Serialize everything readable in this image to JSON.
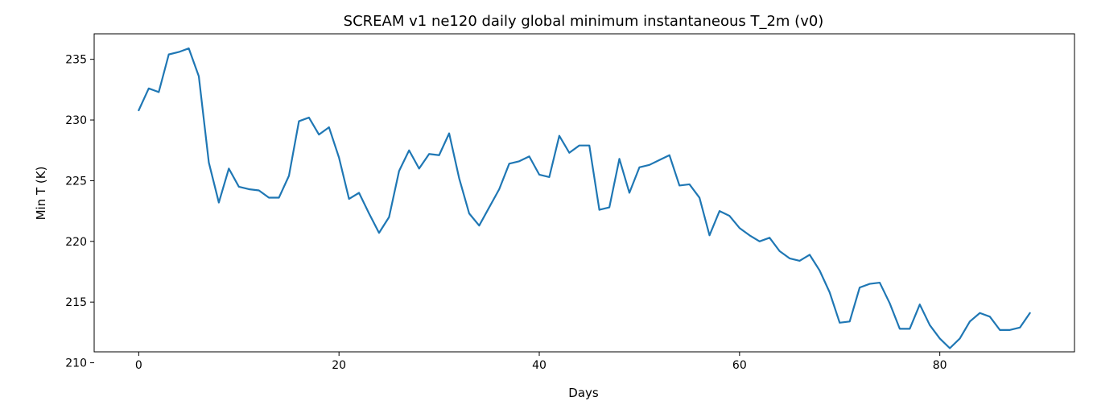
{
  "chart_data": {
    "type": "line",
    "title": "SCREAM v1 ne120 daily global minimum instantaneous T_2m (v0)",
    "xlabel": "Days",
    "ylabel": "Min T (K)",
    "xlim": [
      -4.45,
      93.45
    ],
    "ylim": [
      210.9,
      237.1
    ],
    "xticks": [
      0,
      20,
      40,
      60,
      80
    ],
    "yticks": [
      210,
      215,
      220,
      225,
      230,
      235
    ],
    "grid": false,
    "legend": false,
    "series": [
      {
        "color": "#1f77b4",
        "x": [
          0,
          1,
          2,
          3,
          4,
          5,
          6,
          7,
          8,
          9,
          10,
          11,
          12,
          13,
          14,
          15,
          16,
          17,
          18,
          19,
          20,
          21,
          22,
          23,
          24,
          25,
          26,
          27,
          28,
          29,
          30,
          31,
          32,
          33,
          34,
          35,
          36,
          37,
          38,
          39,
          40,
          41,
          42,
          43,
          44,
          45,
          46,
          47,
          48,
          49,
          50,
          51,
          52,
          53,
          54,
          55,
          56,
          57,
          58,
          59,
          60,
          61,
          62,
          63,
          64,
          65,
          66,
          67,
          68,
          69,
          70,
          71,
          72,
          73,
          74,
          75,
          76,
          77,
          78,
          79,
          80,
          81,
          82,
          83,
          84,
          85,
          86,
          87,
          88,
          89
        ],
        "y": [
          230.8,
          232.6,
          232.3,
          235.4,
          235.6,
          235.9,
          233.6,
          226.5,
          223.2,
          226.0,
          224.5,
          224.3,
          224.2,
          223.6,
          223.6,
          225.4,
          229.9,
          230.2,
          228.8,
          229.4,
          226.9,
          223.5,
          224.0,
          222.3,
          220.7,
          222.0,
          225.8,
          227.5,
          226.0,
          227.2,
          227.1,
          228.9,
          225.2,
          222.3,
          221.3,
          222.8,
          224.3,
          226.4,
          226.6,
          227.0,
          225.5,
          225.3,
          228.7,
          227.3,
          227.9,
          227.9,
          222.6,
          222.8,
          226.8,
          224.0,
          226.1,
          226.3,
          226.7,
          227.1,
          224.6,
          224.7,
          223.6,
          220.5,
          222.5,
          222.1,
          221.1,
          220.5,
          220.0,
          220.3,
          219.2,
          218.6,
          218.4,
          218.9,
          217.6,
          215.8,
          213.3,
          213.4,
          216.2,
          216.5,
          216.6,
          214.9,
          212.8,
          212.8,
          214.8,
          213.1,
          212.0,
          211.2,
          212.0,
          213.4,
          214.1,
          213.8,
          212.7,
          212.7,
          212.9,
          214.1
        ]
      }
    ]
  }
}
